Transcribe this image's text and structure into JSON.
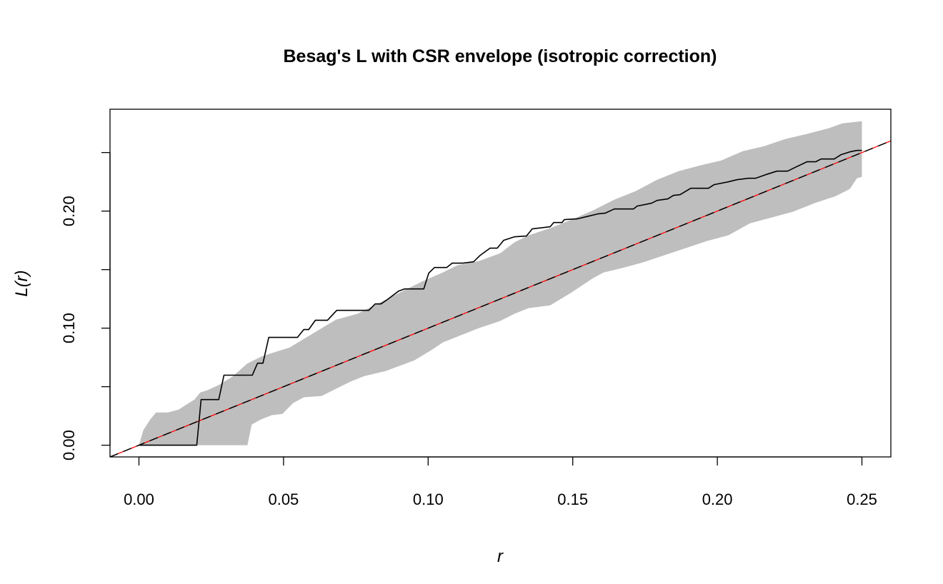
{
  "chart_data": {
    "type": "line",
    "title": "Besag's L with CSR envelope (isotropic correction)",
    "xlabel": "r",
    "ylabel": "L(r)",
    "xlim": [
      -0.01,
      0.26
    ],
    "ylim": [
      -0.01,
      0.287
    ],
    "x_ticks": [
      "0.00",
      "0.05",
      "0.10",
      "0.15",
      "0.20",
      "0.25"
    ],
    "x_tick_values": [
      0,
      0.05,
      0.1,
      0.15,
      0.2,
      0.25
    ],
    "y_ticks": [
      "0.00",
      "0.10",
      "0.20"
    ],
    "y_tick_values": [
      0,
      0.05,
      0.1,
      0.15,
      0.2,
      0.25
    ],
    "y_tick_labels_at": [
      0,
      0.1,
      0.2
    ],
    "grid": false,
    "colors": {
      "envelope": "#bebebe",
      "observed": "#000000",
      "theoretical": "#000000",
      "theoretical_under": "#ff0000"
    },
    "series": [
      {
        "role": "observed",
        "style": "solid",
        "points": [
          [
            0,
            0
          ],
          [
            0.02,
            0
          ],
          [
            0.0215,
            0.039
          ],
          [
            0.0276,
            0.039
          ],
          [
            0.0294,
            0.0598
          ],
          [
            0.0392,
            0.0598
          ],
          [
            0.041,
            0.0701
          ],
          [
            0.0429,
            0.0701
          ],
          [
            0.0449,
            0.0921
          ],
          [
            0.0548,
            0.0921
          ],
          [
            0.057,
            0.0988
          ],
          [
            0.0587,
            0.0988
          ],
          [
            0.061,
            0.1067
          ],
          [
            0.0652,
            0.1067
          ],
          [
            0.0684,
            0.1152
          ],
          [
            0.0795,
            0.1152
          ],
          [
            0.0817,
            0.1207
          ],
          [
            0.0837,
            0.1207
          ],
          [
            0.0859,
            0.1244
          ],
          [
            0.0898,
            0.1317
          ],
          [
            0.0918,
            0.1335
          ],
          [
            0.0985,
            0.1335
          ],
          [
            0.1002,
            0.147
          ],
          [
            0.1022,
            0.1518
          ],
          [
            0.1064,
            0.1518
          ],
          [
            0.1083,
            0.1555
          ],
          [
            0.112,
            0.1555
          ],
          [
            0.1157,
            0.1567
          ],
          [
            0.118,
            0.1622
          ],
          [
            0.1214,
            0.1683
          ],
          [
            0.1239,
            0.1683
          ],
          [
            0.1261,
            0.175
          ],
          [
            0.1298,
            0.178
          ],
          [
            0.134,
            0.1787
          ],
          [
            0.136,
            0.1848
          ],
          [
            0.1422,
            0.1866
          ],
          [
            0.1434,
            0.1902
          ],
          [
            0.1463,
            0.1902
          ],
          [
            0.1471,
            0.1927
          ],
          [
            0.1515,
            0.1933
          ],
          [
            0.1545,
            0.1951
          ],
          [
            0.1587,
            0.1976
          ],
          [
            0.1612,
            0.1982
          ],
          [
            0.1644,
            0.2018
          ],
          [
            0.171,
            0.2018
          ],
          [
            0.1723,
            0.2043
          ],
          [
            0.1772,
            0.2067
          ],
          [
            0.1792,
            0.2091
          ],
          [
            0.1829,
            0.2104
          ],
          [
            0.1848,
            0.2134
          ],
          [
            0.1871,
            0.214
          ],
          [
            0.1908,
            0.2195
          ],
          [
            0.1969,
            0.2195
          ],
          [
            0.1989,
            0.2226
          ],
          [
            0.2038,
            0.225
          ],
          [
            0.2068,
            0.2268
          ],
          [
            0.2108,
            0.228
          ],
          [
            0.2132,
            0.228
          ],
          [
            0.2167,
            0.2311
          ],
          [
            0.2206,
            0.2341
          ],
          [
            0.2243,
            0.2341
          ],
          [
            0.2273,
            0.2378
          ],
          [
            0.231,
            0.2421
          ],
          [
            0.234,
            0.2421
          ],
          [
            0.2359,
            0.2445
          ],
          [
            0.2404,
            0.2445
          ],
          [
            0.2428,
            0.2482
          ],
          [
            0.2458,
            0.2506
          ],
          [
            0.2483,
            0.2518
          ],
          [
            0.25,
            0.2518
          ]
        ]
      },
      {
        "role": "theoretical",
        "style": "dashed",
        "points": [
          [
            -0.01,
            -0.01
          ],
          [
            0.26,
            0.26
          ]
        ]
      }
    ],
    "envelope": {
      "upper": [
        [
          0,
          0
        ],
        [
          0.0015,
          0.0128
        ],
        [
          0.0039,
          0.022
        ],
        [
          0.0059,
          0.028
        ],
        [
          0.0101,
          0.028
        ],
        [
          0.0138,
          0.0305
        ],
        [
          0.0168,
          0.0354
        ],
        [
          0.0192,
          0.039
        ],
        [
          0.0212,
          0.0451
        ],
        [
          0.0237,
          0.047
        ],
        [
          0.0274,
          0.0512
        ],
        [
          0.0323,
          0.0585
        ],
        [
          0.0373,
          0.0695
        ],
        [
          0.0422,
          0.0756
        ],
        [
          0.0459,
          0.0787
        ],
        [
          0.0521,
          0.0835
        ],
        [
          0.0607,
          0.0963
        ],
        [
          0.0681,
          0.1073
        ],
        [
          0.0755,
          0.1122
        ],
        [
          0.0829,
          0.1213
        ],
        [
          0.0903,
          0.1305
        ],
        [
          0.0977,
          0.1396
        ],
        [
          0.1051,
          0.1476
        ],
        [
          0.1101,
          0.1537
        ],
        [
          0.1175,
          0.1573
        ],
        [
          0.1249,
          0.164
        ],
        [
          0.1298,
          0.1732
        ],
        [
          0.1347,
          0.1793
        ],
        [
          0.1422,
          0.1854
        ],
        [
          0.1496,
          0.1927
        ],
        [
          0.157,
          0.2006
        ],
        [
          0.1644,
          0.2098
        ],
        [
          0.1718,
          0.2171
        ],
        [
          0.1792,
          0.2268
        ],
        [
          0.1866,
          0.2341
        ],
        [
          0.194,
          0.239
        ],
        [
          0.2014,
          0.2433
        ],
        [
          0.2088,
          0.2512
        ],
        [
          0.2162,
          0.2555
        ],
        [
          0.2236,
          0.2616
        ],
        [
          0.231,
          0.2659
        ],
        [
          0.2384,
          0.2707
        ],
        [
          0.2433,
          0.275
        ],
        [
          0.25,
          0.2768
        ]
      ],
      "lower": [
        [
          0,
          0
        ],
        [
          0.0375,
          0
        ],
        [
          0.039,
          0.0177
        ],
        [
          0.0422,
          0.022
        ],
        [
          0.0459,
          0.0256
        ],
        [
          0.0496,
          0.0268
        ],
        [
          0.0533,
          0.036
        ],
        [
          0.057,
          0.0409
        ],
        [
          0.0632,
          0.0421
        ],
        [
          0.0681,
          0.0482
        ],
        [
          0.0731,
          0.0543
        ],
        [
          0.078,
          0.0591
        ],
        [
          0.0854,
          0.0634
        ],
        [
          0.0953,
          0.0726
        ],
        [
          0.1014,
          0.0817
        ],
        [
          0.1051,
          0.0878
        ],
        [
          0.1113,
          0.0939
        ],
        [
          0.1175,
          0.1
        ],
        [
          0.1249,
          0.1061
        ],
        [
          0.1298,
          0.1122
        ],
        [
          0.1347,
          0.1171
        ],
        [
          0.1422,
          0.1195
        ],
        [
          0.1496,
          0.1305
        ],
        [
          0.157,
          0.1427
        ],
        [
          0.1607,
          0.1476
        ],
        [
          0.1668,
          0.1512
        ],
        [
          0.1742,
          0.1561
        ],
        [
          0.1816,
          0.1622
        ],
        [
          0.189,
          0.1683
        ],
        [
          0.1964,
          0.1744
        ],
        [
          0.2038,
          0.1793
        ],
        [
          0.2113,
          0.1896
        ],
        [
          0.2187,
          0.1945
        ],
        [
          0.2261,
          0.1994
        ],
        [
          0.2335,
          0.2067
        ],
        [
          0.2409,
          0.2128
        ],
        [
          0.2458,
          0.2189
        ],
        [
          0.2483,
          0.228
        ],
        [
          0.25,
          0.2293
        ]
      ]
    }
  }
}
